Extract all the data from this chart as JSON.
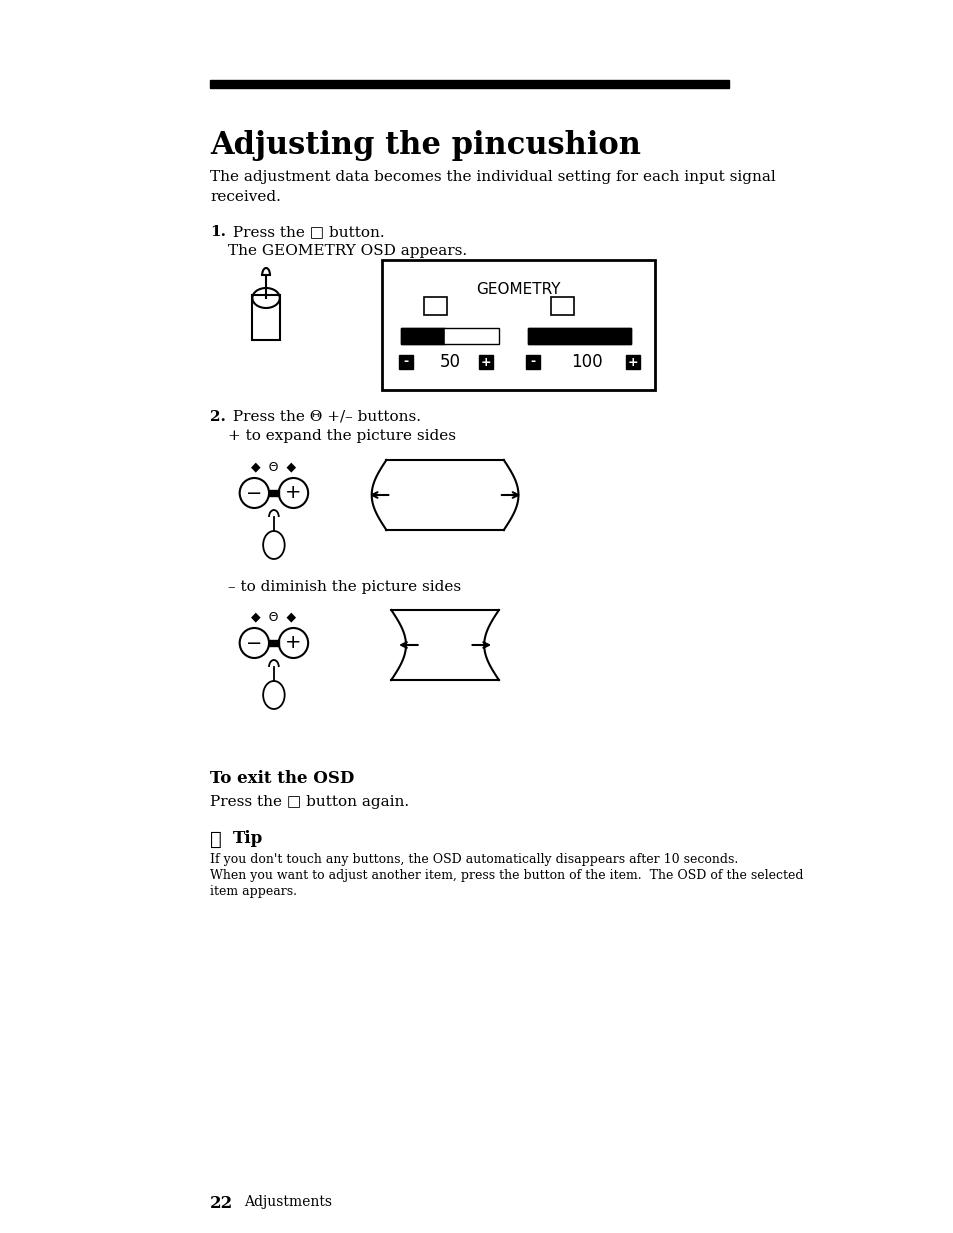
{
  "bg_color": "#f5f5f0",
  "title": "Adjusting the pincushion",
  "title_fontsize": 22,
  "body_fontsize": 11,
  "small_fontsize": 9,
  "step1_bold": "1.",
  "step1_text1": " Press the □ button.",
  "step1_text2": "The GEOMETRY OSD appears.",
  "step2_bold": "2.",
  "step2_text1": " Press the Θ +/– buttons.",
  "step2_text2": "+ to expand the picture sides",
  "step2_text3": "– to diminish the picture sides",
  "exit_bold": "To exit the OSD",
  "exit_text": "Press the □ button again.",
  "tip_bold": "Tip",
  "tip_text1": "If you don't touch any buttons, the OSD automatically disappears after 10 seconds.",
  "tip_text2": "When you want to adjust another item, press the button of the item.  The OSD of the selected",
  "tip_text3": "item appears.",
  "geometry_label": "GEOMETRY",
  "val1": "50",
  "val2": "100",
  "page_num": "22",
  "page_section": "Adjustments",
  "desc_text1": "The adjustment data becomes the individual setting for each input signal",
  "desc_text2": "received."
}
